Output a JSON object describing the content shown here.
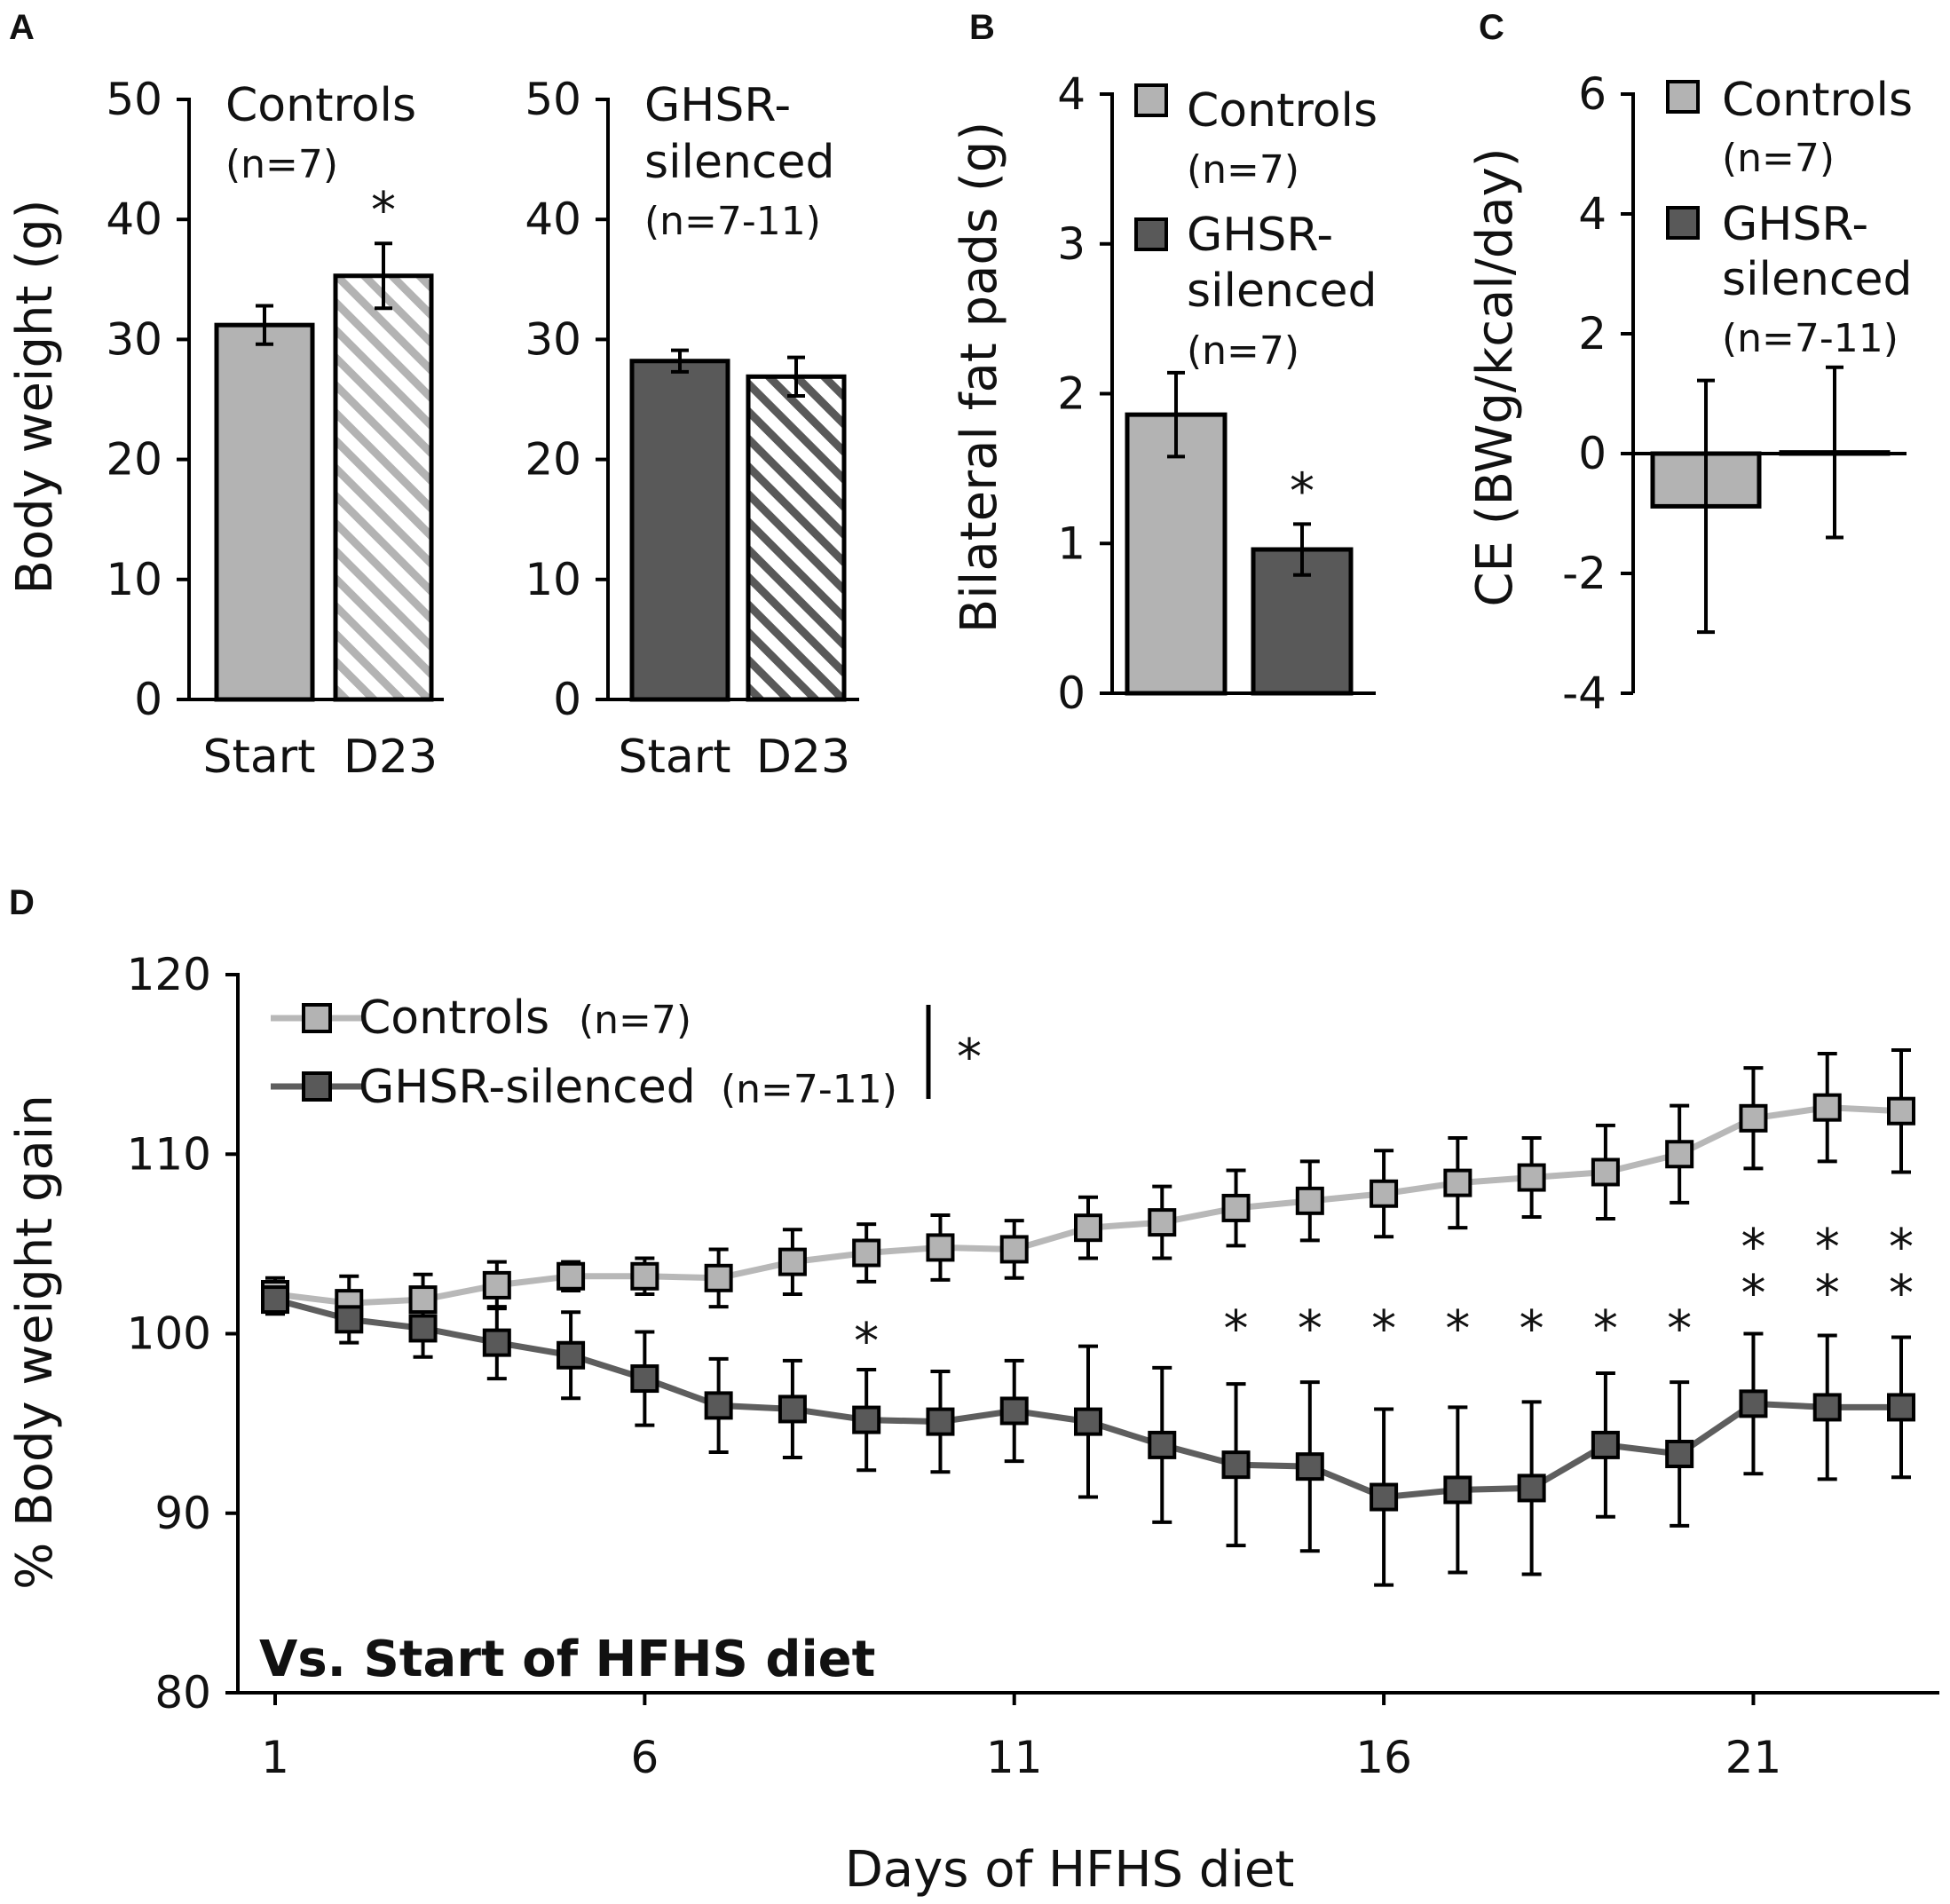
{
  "colors": {
    "controls": "#b3b3b3",
    "ghsr": "#595959",
    "controls_line": "#b8b8b8",
    "ghsr_line": "#5e5e5e",
    "axis": "#000000"
  },
  "panels": {
    "A": "A",
    "B": "B",
    "C": "C",
    "D": "D"
  },
  "chart_data": [
    {
      "id": "A-controls",
      "type": "bar",
      "title": "Controls",
      "subtitle": "(n=7)",
      "ylabel": "Body weight (g)",
      "ylim": [
        0,
        50
      ],
      "yticks": [
        "0",
        "10",
        "20",
        "30",
        "40",
        "50"
      ],
      "categories": [
        "Start",
        "D23"
      ],
      "values": [
        31.2,
        35.3
      ],
      "errors": [
        1.6,
        2.7
      ],
      "significance": [
        "",
        "*"
      ],
      "fills": [
        "solid",
        "hatched"
      ]
    },
    {
      "id": "A-ghsr",
      "type": "bar",
      "title_line1": "GHSR-",
      "title_line2": "silenced",
      "subtitle": "(n=7-11)",
      "ylim": [
        0,
        50
      ],
      "yticks": [
        "0",
        "10",
        "20",
        "30",
        "40",
        "50"
      ],
      "categories": [
        "Start",
        "D23"
      ],
      "values": [
        28.2,
        26.9
      ],
      "errors": [
        0.9,
        1.6
      ],
      "fills": [
        "solid",
        "hatched"
      ]
    },
    {
      "id": "B",
      "type": "bar",
      "ylabel": "Bilateral fat pads (g)",
      "ylim": [
        0,
        4
      ],
      "yticks": [
        "0",
        "1",
        "2",
        "3",
        "4"
      ],
      "values": [
        1.86,
        0.96
      ],
      "errors": [
        0.28,
        0.17
      ],
      "significance": [
        "",
        "*"
      ],
      "legend": [
        {
          "line1": "Controls",
          "line2": "(n=7)"
        },
        {
          "line1": "GHSR-",
          "line2": "silenced",
          "line3": "(n=7)"
        }
      ]
    },
    {
      "id": "C",
      "type": "bar",
      "ylabel": "CE (BWg/kcal/day)",
      "ylim": [
        -4,
        6
      ],
      "yticks": [
        "-4",
        "-2",
        "0",
        "2",
        "4",
        "6"
      ],
      "values": [
        -0.88,
        0.02
      ],
      "errors": [
        2.1,
        1.42
      ],
      "legend": [
        {
          "line1": "Controls",
          "line2": "(n=7)"
        },
        {
          "line1": "GHSR-",
          "line2": "silenced",
          "line3": "(n=7-11)"
        }
      ]
    },
    {
      "id": "D",
      "type": "line",
      "xlabel": "Days of HFHS diet",
      "ylabel": "% Body weight gain",
      "annotation": "Vs. Start of HFHS diet",
      "group_significance": "*",
      "xlim": [
        1,
        23
      ],
      "ylim": [
        80,
        120
      ],
      "xticks": [
        "1",
        "6",
        "11",
        "16",
        "21"
      ],
      "yticks": [
        "80",
        "90",
        "100",
        "110",
        "120"
      ],
      "x": [
        1,
        2,
        3,
        4,
        5,
        6,
        7,
        8,
        9,
        10,
        11,
        12,
        13,
        14,
        15,
        16,
        17,
        18,
        19,
        20,
        21,
        22,
        23
      ],
      "series": [
        {
          "name": "Controls",
          "n_label": "(n=7)",
          "values": [
            102.2,
            101.7,
            101.9,
            102.7,
            103.2,
            103.2,
            103.1,
            104.0,
            104.5,
            104.8,
            104.7,
            105.9,
            106.2,
            107.0,
            107.4,
            107.8,
            108.4,
            108.7,
            109.0,
            110.0,
            112.0,
            112.6,
            112.4
          ],
          "errors": [
            0.9,
            1.5,
            1.4,
            1.3,
            0.8,
            1.0,
            1.6,
            1.8,
            1.6,
            1.8,
            1.6,
            1.7,
            2.0,
            2.1,
            2.2,
            2.4,
            2.5,
            2.2,
            2.6,
            2.7,
            2.8,
            3.0,
            3.4
          ]
        },
        {
          "name": "GHSR-silenced",
          "n_label": "(n=7-11)",
          "values": [
            101.9,
            100.8,
            100.3,
            99.5,
            98.8,
            97.5,
            96.0,
            95.8,
            95.2,
            95.1,
            95.7,
            95.1,
            93.8,
            92.7,
            92.6,
            90.9,
            91.3,
            91.4,
            93.8,
            93.3,
            96.1,
            95.9,
            95.9
          ],
          "errors": [
            0.8,
            1.3,
            1.6,
            2.0,
            2.4,
            2.6,
            2.6,
            2.7,
            2.8,
            2.8,
            2.8,
            4.2,
            4.3,
            4.5,
            4.7,
            4.9,
            4.6,
            4.8,
            4.0,
            4.0,
            3.9,
            4.0,
            3.9
          ]
        }
      ],
      "significance": [
        {
          "day": 9,
          "label": "*"
        },
        {
          "day": 14,
          "label": "*"
        },
        {
          "day": 15,
          "label": "*"
        },
        {
          "day": 16,
          "label": "*"
        },
        {
          "day": 17,
          "label": "*"
        },
        {
          "day": 18,
          "label": "*"
        },
        {
          "day": 19,
          "label": "*"
        },
        {
          "day": 20,
          "label": "*"
        },
        {
          "day": 21,
          "label": "**"
        },
        {
          "day": 22,
          "label": "**"
        },
        {
          "day": 23,
          "label": "**"
        }
      ]
    }
  ]
}
